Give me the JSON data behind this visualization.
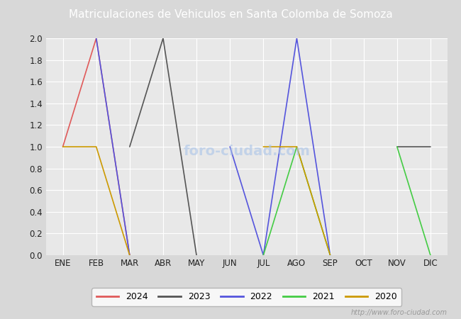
{
  "title": "Matriculaciones de Vehiculos en Santa Colomba de Somoza",
  "title_bg_color": "#5b8dd9",
  "title_text_color": "#ffffff",
  "months": [
    "ENE",
    "FEB",
    "MAR",
    "ABR",
    "MAY",
    "JUN",
    "JUL",
    "AGO",
    "SEP",
    "OCT",
    "NOV",
    "DIC"
  ],
  "series": {
    "2024": {
      "color": "#e05a5a",
      "values": [
        1,
        2,
        0,
        null,
        null,
        null,
        null,
        null,
        null,
        null,
        null,
        null
      ]
    },
    "2023": {
      "color": "#555555",
      "values": [
        null,
        null,
        1,
        2,
        0,
        null,
        null,
        null,
        null,
        null,
        1,
        1
      ]
    },
    "2022": {
      "color": "#5555dd",
      "values": [
        null,
        2,
        0,
        null,
        null,
        1,
        0,
        2,
        0,
        null,
        null,
        null
      ]
    },
    "2021": {
      "color": "#44cc44",
      "values": [
        null,
        null,
        null,
        null,
        null,
        null,
        0,
        1,
        0,
        null,
        1,
        0
      ]
    },
    "2020": {
      "color": "#cc9900",
      "values": [
        1,
        1,
        0,
        null,
        null,
        null,
        1,
        1,
        0,
        null,
        null,
        null
      ]
    }
  },
  "ylim": [
    0,
    2.0
  ],
  "yticks": [
    0.0,
    0.2,
    0.4,
    0.6,
    0.8,
    1.0,
    1.2,
    1.4,
    1.6,
    1.8,
    2.0
  ],
  "bg_color": "#d8d8d8",
  "plot_bg_color": "#e8e8e8",
  "grid_color": "#ffffff",
  "watermark": "http://www.foro-ciudad.com",
  "legend_years": [
    "2024",
    "2023",
    "2022",
    "2021",
    "2020"
  ]
}
